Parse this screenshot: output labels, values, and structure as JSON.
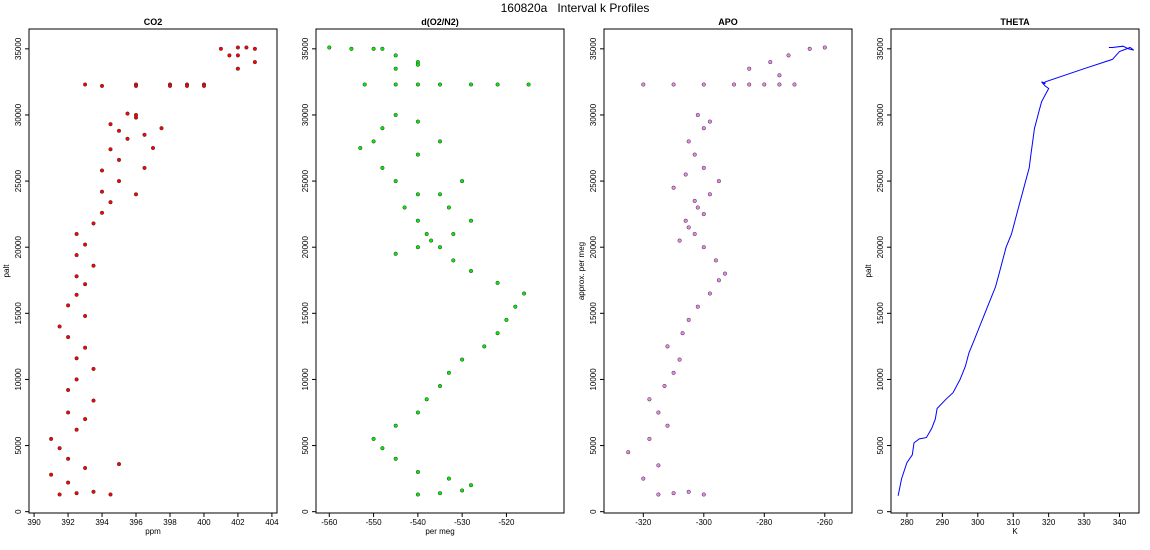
{
  "title": "160820a   Interval k Profiles",
  "chart_data": [
    {
      "type": "scatter",
      "title": "CO2",
      "xlabel": "ppm",
      "ylabel": "palt",
      "xlim": [
        389.7,
        404.3
      ],
      "ylim": [
        -100,
        36500
      ],
      "xticks": [
        390,
        392,
        394,
        396,
        398,
        400,
        402,
        404
      ],
      "yticks": [
        0,
        5000,
        10000,
        15000,
        20000,
        25000,
        30000,
        35000
      ],
      "color": "#ff0000",
      "series": [
        {
          "x": [
            391.5,
            392.5,
            393.5,
            394.5,
            392,
            391,
            393,
            395,
            392,
            391.5,
            391,
            392.5,
            393,
            392,
            393.5,
            392,
            392.5,
            393.5,
            392.5,
            393,
            392,
            391.5,
            393,
            392,
            392.5,
            393,
            392.5,
            393.5,
            392.5,
            393,
            392.5,
            393.5,
            394,
            394.5,
            394,
            395,
            394,
            395,
            394.5,
            395.5,
            395,
            394.5,
            396,
            395.5,
            396.5,
            396,
            397,
            396.5,
            397.5,
            396,
            393,
            396,
            398,
            399,
            400,
            394,
            396,
            398,
            399,
            400,
            402,
            403,
            401,
            402,
            401.5,
            402.5,
            403,
            402
          ],
          "y": [
            1300,
            1400,
            1500,
            1300,
            2200,
            2800,
            3300,
            3600,
            4000,
            4800,
            5500,
            6200,
            7000,
            7500,
            8400,
            9200,
            10000,
            10800,
            11600,
            12400,
            13200,
            14000,
            14800,
            15600,
            16400,
            17200,
            17800,
            18600,
            19400,
            20200,
            21000,
            21800,
            22600,
            23400,
            24200,
            25000,
            25800,
            26600,
            27400,
            28200,
            28800,
            29300,
            29800,
            30100,
            26000,
            24000,
            27500,
            28500,
            29000,
            30000,
            32300,
            32300,
            32300,
            32300,
            32300,
            32200,
            32200,
            32200,
            32200,
            32200,
            34500,
            35000,
            35000,
            35100,
            34500,
            35100,
            34000,
            33500
          ]
        }
      ]
    },
    {
      "type": "scatter",
      "title": "d(O2/N2)",
      "xlabel": "per meg",
      "ylabel": "",
      "xlim": [
        -563,
        -507
      ],
      "ylim": [
        -100,
        36500
      ],
      "xticks": [
        -560,
        -550,
        -540,
        -530,
        -520
      ],
      "yticks": [
        0,
        5000,
        10000,
        15000,
        20000,
        25000,
        30000,
        35000
      ],
      "color": "#00ee00",
      "series": [
        {
          "x": [
            -540,
            -535,
            -530,
            -528,
            -533,
            -540,
            -545,
            -548,
            -550,
            -545,
            -540,
            -538,
            -535,
            -533,
            -530,
            -525,
            -522,
            -520,
            -518,
            -516,
            -522,
            -528,
            -532,
            -535,
            -538,
            -540,
            -543,
            -540,
            -545,
            -548,
            -540,
            -535,
            -535,
            -530,
            -533,
            -528,
            -532,
            -537,
            -540,
            -545,
            -550,
            -553,
            -548,
            -545,
            -540,
            -552,
            -545,
            -540,
            -535,
            -528,
            -522,
            -515,
            -545,
            -540,
            -555,
            -560,
            -550,
            -545,
            -540,
            -548
          ],
          "y": [
            1300,
            1400,
            1600,
            2000,
            2500,
            3000,
            4000,
            4800,
            5500,
            6500,
            7500,
            8500,
            9500,
            10500,
            11500,
            12500,
            13500,
            14500,
            15500,
            16500,
            17300,
            18200,
            19000,
            20000,
            21000,
            22000,
            23000,
            24000,
            25000,
            26000,
            27000,
            28000,
            24000,
            25000,
            23000,
            22000,
            21000,
            20500,
            20000,
            19500,
            28000,
            27500,
            29000,
            30000,
            29500,
            32300,
            32300,
            32300,
            32300,
            32300,
            32300,
            32300,
            33500,
            34000,
            35000,
            35100,
            35000,
            34500,
            33800,
            35000
          ]
        }
      ]
    },
    {
      "type": "scatter",
      "title": "APO",
      "xlabel": "",
      "ylabel": "approx. per meg",
      "xlim": [
        -333,
        -251
      ],
      "ylim": [
        -100,
        36500
      ],
      "xticks": [
        -320,
        -300,
        -280,
        -260
      ],
      "yticks": [
        0,
        5000,
        10000,
        15000,
        20000,
        25000,
        30000,
        35000
      ],
      "color": "#ee82ee",
      "series": [
        {
          "x": [
            -315,
            -310,
            -305,
            -300,
            -320,
            -315,
            -325,
            -318,
            -312,
            -315,
            -318,
            -313,
            -310,
            -308,
            -312,
            -307,
            -305,
            -302,
            -298,
            -295,
            -293,
            -296,
            -300,
            -303,
            -306,
            -302,
            -298,
            -295,
            -300,
            -303,
            -305,
            -300,
            -298,
            -302,
            -306,
            -310,
            -303,
            -300,
            -305,
            -308,
            -320,
            -310,
            -300,
            -290,
            -285,
            -280,
            -275,
            -270,
            -285,
            -278,
            -272,
            -265,
            -260,
            -275
          ],
          "y": [
            1300,
            1400,
            1500,
            1300,
            2500,
            3500,
            4500,
            5500,
            6500,
            7500,
            8500,
            9500,
            10500,
            11500,
            12500,
            13500,
            14500,
            15500,
            16500,
            17500,
            18000,
            19000,
            20000,
            21000,
            22000,
            23000,
            24000,
            25000,
            26000,
            27000,
            28000,
            29000,
            29500,
            30000,
            25500,
            24500,
            23500,
            22500,
            21500,
            20500,
            32300,
            32300,
            32300,
            32300,
            32300,
            32300,
            32300,
            32300,
            33500,
            34000,
            34500,
            35000,
            35100,
            33000
          ]
        }
      ]
    },
    {
      "type": "line",
      "title": "THETA",
      "xlabel": "K",
      "ylabel": "palt",
      "xlim": [
        275.5,
        345.5
      ],
      "ylim": [
        -100,
        36500
      ],
      "xticks": [
        280,
        290,
        300,
        310,
        320,
        330,
        340
      ],
      "yticks": [
        0,
        5000,
        10000,
        15000,
        20000,
        25000,
        30000,
        35000
      ],
      "color": "#0000ff",
      "series": [
        {
          "x": [
            277.5,
            278.5,
            280,
            281.5,
            282,
            283.5,
            285.5,
            287,
            288,
            288.5,
            291,
            293,
            295,
            296.5,
            297.5,
            299,
            300.5,
            302,
            303.5,
            305,
            306,
            307,
            308,
            309.5,
            310.5,
            311.5,
            312.5,
            313.5,
            314.5,
            315,
            315.5,
            316,
            316.5,
            317,
            317.5,
            318,
            319,
            320,
            319,
            318,
            319,
            318.5,
            319,
            330,
            338,
            340,
            343,
            344,
            342.5,
            341,
            338,
            337
          ],
          "y": [
            1200,
            2500,
            3700,
            4300,
            5200,
            5500,
            5600,
            6300,
            7000,
            7800,
            8500,
            9000,
            10000,
            11000,
            12000,
            13000,
            14000,
            15000,
            16000,
            17000,
            18000,
            19000,
            20000,
            21000,
            22000,
            23000,
            24000,
            25000,
            26000,
            27000,
            28000,
            29000,
            29500,
            30000,
            30500,
            31000,
            31500,
            32000,
            32200,
            32500,
            32400,
            32300,
            32500,
            33500,
            34200,
            34800,
            35100,
            34900,
            35000,
            35200,
            35100,
            35100
          ]
        }
      ]
    }
  ]
}
